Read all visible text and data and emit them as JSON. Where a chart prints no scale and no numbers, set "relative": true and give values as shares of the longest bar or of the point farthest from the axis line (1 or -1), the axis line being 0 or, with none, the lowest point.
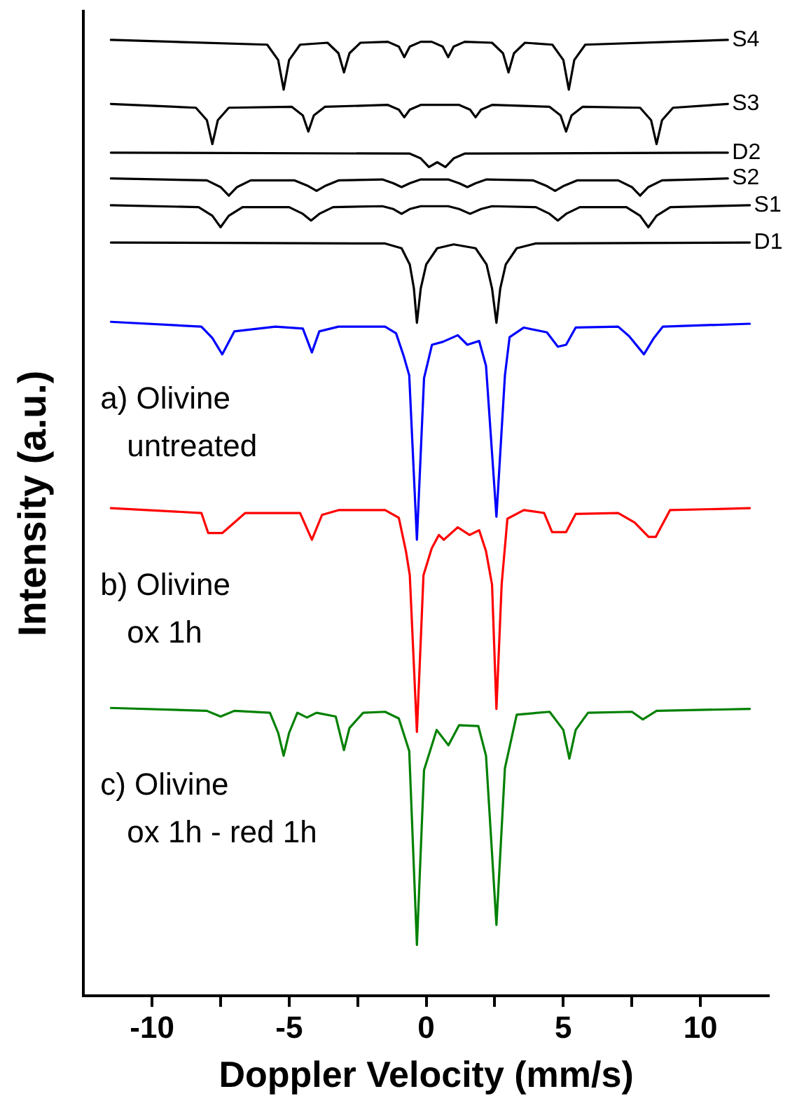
{
  "chart_data": {
    "type": "line",
    "relative": true,
    "xlabel": "Doppler Velocity (mm/s)",
    "ylabel": "Intensity (a.u.)",
    "xlim": [
      -12.5,
      12.5
    ],
    "xticks": [
      -10,
      {
        "value": -7.5,
        "label": null
      },
      -5,
      {
        "value": -2.5,
        "label": null
      },
      0,
      {
        "value": 2.5,
        "label": null
      },
      5,
      {
        "value": 7.5,
        "label": null
      },
      10
    ],
    "legend": false,
    "grid": false,
    "marker": "none",
    "line_style": "solid",
    "series": [
      {
        "name": "S4",
        "color": "#000000",
        "x": [
          -11.5,
          -5.8,
          -5.4,
          -5.2,
          -5.0,
          -4.6,
          -3.6,
          -3.2,
          -3.0,
          -2.8,
          -2.4,
          -1.4,
          -1.0,
          -0.8,
          -0.6,
          -0.2,
          0.2,
          0.6,
          0.8,
          1.0,
          1.4,
          2.4,
          2.8,
          3.0,
          3.2,
          3.6,
          4.6,
          5.0,
          5.2,
          5.4,
          5.8,
          11.0
        ],
        "values": [
          1.0,
          0.995,
          0.979,
          0.948,
          0.979,
          0.995,
          0.997,
          0.986,
          0.966,
          0.986,
          0.997,
          0.998,
          0.993,
          0.982,
          0.993,
          0.998,
          0.998,
          0.993,
          0.982,
          0.993,
          0.998,
          0.997,
          0.986,
          0.966,
          0.986,
          0.997,
          0.995,
          0.979,
          0.948,
          0.979,
          0.995,
          1.0
        ]
      },
      {
        "name": "S3",
        "color": "#000000",
        "x": [
          -11.5,
          -8.4,
          -8.0,
          -7.8,
          -7.6,
          -7.2,
          -4.9,
          -4.5,
          -4.3,
          -4.1,
          -3.7,
          -1.4,
          -1.0,
          -0.8,
          -0.6,
          -0.2,
          1.2,
          1.6,
          1.8,
          2.0,
          2.4,
          4.5,
          4.9,
          5.1,
          5.3,
          5.7,
          7.8,
          8.2,
          8.4,
          8.6,
          9.0,
          11.0
        ],
        "values": [
          0.933,
          0.929,
          0.916,
          0.891,
          0.916,
          0.929,
          0.93,
          0.921,
          0.904,
          0.921,
          0.93,
          0.932,
          0.927,
          0.919,
          0.927,
          0.932,
          0.932,
          0.927,
          0.919,
          0.927,
          0.932,
          0.93,
          0.921,
          0.904,
          0.921,
          0.93,
          0.929,
          0.916,
          0.891,
          0.916,
          0.929,
          0.933
        ]
      },
      {
        "name": "D2",
        "color": "#000000",
        "x": [
          -11.5,
          -0.6,
          -0.2,
          0.1,
          0.4,
          0.7,
          1.0,
          1.4,
          11.0
        ],
        "values": [
          0.882,
          0.881,
          0.876,
          0.867,
          0.872,
          0.867,
          0.876,
          0.881,
          0.882
        ]
      },
      {
        "name": "S2",
        "color": "#000000",
        "x": [
          -11.5,
          -8.0,
          -7.5,
          -7.2,
          -6.9,
          -6.4,
          -4.8,
          -4.3,
          -4.0,
          -3.7,
          -3.2,
          -1.6,
          -1.2,
          -0.9,
          -0.6,
          -0.2,
          0.8,
          1.2,
          1.5,
          1.8,
          2.2,
          3.9,
          4.4,
          4.7,
          5.0,
          5.5,
          7.0,
          7.5,
          7.8,
          8.1,
          8.6,
          11.0
        ],
        "values": [
          0.855,
          0.853,
          0.846,
          0.837,
          0.846,
          0.853,
          0.853,
          0.847,
          0.842,
          0.847,
          0.853,
          0.854,
          0.85,
          0.846,
          0.85,
          0.854,
          0.854,
          0.85,
          0.846,
          0.85,
          0.854,
          0.853,
          0.847,
          0.842,
          0.847,
          0.853,
          0.853,
          0.846,
          0.837,
          0.846,
          0.853,
          0.855
        ]
      },
      {
        "name": "S1",
        "color": "#000000",
        "x": [
          -11.5,
          -8.3,
          -7.8,
          -7.5,
          -7.2,
          -6.7,
          -5.0,
          -4.5,
          -4.2,
          -3.9,
          -3.4,
          -1.6,
          -1.2,
          -0.9,
          -0.6,
          -0.2,
          0.8,
          1.2,
          1.6,
          2.0,
          2.4,
          4.0,
          4.5,
          4.8,
          5.1,
          5.6,
          7.3,
          7.8,
          8.1,
          8.4,
          8.9,
          11.8
        ],
        "values": [
          0.827,
          0.825,
          0.816,
          0.804,
          0.816,
          0.825,
          0.825,
          0.818,
          0.811,
          0.818,
          0.825,
          0.826,
          0.823,
          0.818,
          0.823,
          0.826,
          0.826,
          0.823,
          0.818,
          0.823,
          0.826,
          0.825,
          0.818,
          0.811,
          0.818,
          0.825,
          0.825,
          0.816,
          0.804,
          0.816,
          0.825,
          0.827
        ]
      },
      {
        "name": "D1",
        "color": "#000000",
        "x": [
          -11.5,
          -1.5,
          -0.9,
          -0.6,
          -0.45,
          -0.34,
          -0.2,
          0.0,
          0.4,
          1.0,
          1.8,
          2.2,
          2.4,
          2.56,
          2.7,
          2.9,
          3.3,
          4.0,
          11.8
        ],
        "values": [
          0.788,
          0.787,
          0.782,
          0.765,
          0.74,
          0.704,
          0.74,
          0.765,
          0.782,
          0.786,
          0.782,
          0.765,
          0.74,
          0.704,
          0.74,
          0.765,
          0.782,
          0.787,
          0.788
        ]
      },
      {
        "name": "a) Olivine\nuntreated",
        "color": "#0000ff",
        "x": [
          -11.5,
          -8.2,
          -7.8,
          -7.44,
          -7.0,
          -5.5,
          -4.5,
          -4.17,
          -3.9,
          -3.2,
          -1.5,
          -1.1,
          -0.82,
          -0.62,
          -0.34,
          -0.08,
          0.21,
          0.6,
          1.15,
          1.5,
          1.93,
          2.18,
          2.56,
          2.87,
          3.04,
          3.56,
          4.4,
          4.8,
          5.1,
          5.45,
          7.0,
          7.4,
          7.94,
          8.3,
          8.63,
          11.8
        ],
        "values": [
          0.705,
          0.7,
          0.688,
          0.671,
          0.695,
          0.7,
          0.698,
          0.673,
          0.695,
          0.7,
          0.7,
          0.693,
          0.669,
          0.649,
          0.477,
          0.646,
          0.681,
          0.684,
          0.691,
          0.681,
          0.685,
          0.659,
          0.501,
          0.649,
          0.689,
          0.699,
          0.694,
          0.679,
          0.681,
          0.699,
          0.7,
          0.69,
          0.671,
          0.688,
          0.7,
          0.703
        ]
      },
      {
        "name": "b) Olivine\nox 1h",
        "color": "#ff0000",
        "x": [
          -11.5,
          -8.2,
          -7.95,
          -7.44,
          -6.92,
          -6.6,
          -4.6,
          -4.17,
          -3.8,
          -3.2,
          -1.5,
          -1.0,
          -0.74,
          -0.6,
          -0.34,
          -0.1,
          0.2,
          0.46,
          0.64,
          1.15,
          1.58,
          1.93,
          2.18,
          2.4,
          2.56,
          2.75,
          2.96,
          3.56,
          4.3,
          4.59,
          5.1,
          5.45,
          7.0,
          7.6,
          8.11,
          8.37,
          8.89,
          11.8
        ],
        "values": [
          0.51,
          0.505,
          0.484,
          0.484,
          0.497,
          0.505,
          0.505,
          0.477,
          0.503,
          0.508,
          0.508,
          0.5,
          0.465,
          0.44,
          0.276,
          0.44,
          0.468,
          0.482,
          0.477,
          0.49,
          0.482,
          0.487,
          0.465,
          0.43,
          0.3,
          0.43,
          0.499,
          0.508,
          0.505,
          0.485,
          0.485,
          0.504,
          0.505,
          0.495,
          0.48,
          0.48,
          0.508,
          0.51
        ]
      },
      {
        "name": "c) Olivine\nox 1h - red 1h",
        "color": "#008000",
        "x": [
          -11.5,
          -8.0,
          -7.5,
          -7.0,
          -5.7,
          -5.4,
          -5.2,
          -5.0,
          -4.7,
          -4.35,
          -4.0,
          -3.3,
          -3.0,
          -2.8,
          -2.3,
          -1.5,
          -1.0,
          -0.62,
          -0.34,
          -0.08,
          0.38,
          0.81,
          1.2,
          1.9,
          2.18,
          2.56,
          2.87,
          3.3,
          4.5,
          5.0,
          5.22,
          5.45,
          5.9,
          7.5,
          7.9,
          8.4,
          11.8
        ],
        "values": [
          0.301,
          0.298,
          0.292,
          0.298,
          0.296,
          0.275,
          0.251,
          0.275,
          0.296,
          0.291,
          0.296,
          0.292,
          0.257,
          0.28,
          0.296,
          0.297,
          0.29,
          0.256,
          0.053,
          0.236,
          0.278,
          0.262,
          0.283,
          0.282,
          0.251,
          0.074,
          0.238,
          0.294,
          0.297,
          0.278,
          0.248,
          0.278,
          0.296,
          0.297,
          0.289,
          0.298,
          0.3
        ]
      }
    ]
  }
}
